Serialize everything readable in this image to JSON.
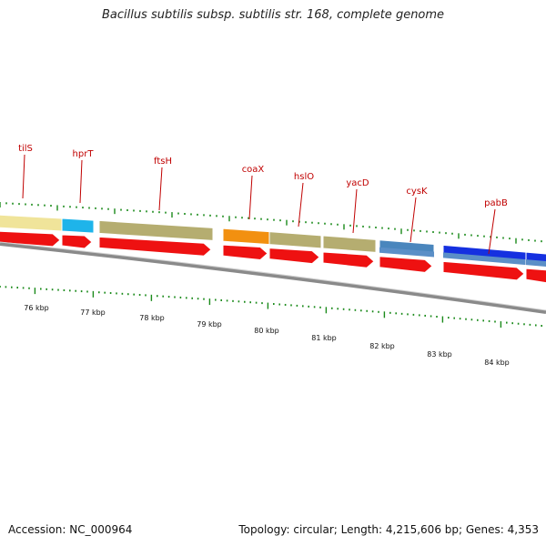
{
  "title": "Bacillus subtilis subsp. subtilis str. 168, complete genome",
  "footer": {
    "accession": "Accession: NC_000964",
    "summary": "Topology: circular; Length: 4,215,606 bp; Genes: 4,353"
  },
  "colors": {
    "gene_label": "#c00000",
    "cds_arrow": "#ee1111",
    "backbone": "#888888",
    "tick": "#1a8a1a"
  },
  "genes": [
    {
      "name": "tilS",
      "color": "#f0e49a",
      "strand": "+"
    },
    {
      "name": "hprT",
      "color": "#1eb4ea",
      "strand": "+"
    },
    {
      "name": "ftsH",
      "color": "#b5ad70",
      "strand": "+"
    },
    {
      "name": "coaX",
      "color": "#f29010",
      "strand": "+"
    },
    {
      "name": "hslO",
      "color": "#b5ad70",
      "strand": "+"
    },
    {
      "name": "yacD",
      "color": "#b5ad70",
      "strand": "+"
    },
    {
      "name": "cysK",
      "color": "#4a86bd",
      "strand": "+"
    },
    {
      "name": "pabB",
      "color": "#1530e0",
      "strand": "+"
    }
  ],
  "kbp_labels": [
    "76 kbp",
    "77 kbp",
    "78 kbp",
    "79 kbp",
    "80 kbp",
    "81 kbp",
    "82 kbp",
    "83 kbp",
    "84 kbp"
  ]
}
